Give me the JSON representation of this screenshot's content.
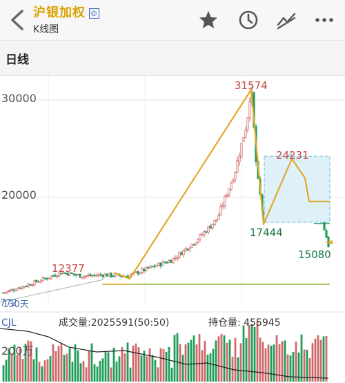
{
  "header": {
    "title": "沪银加权",
    "badge": "◎",
    "subtitle": "K线图",
    "icons": [
      "back-icon",
      "star-icon",
      "clock-icon",
      "trend-icon",
      "more-icon"
    ]
  },
  "tabs": {
    "active": "日线"
  },
  "price_chart": {
    "y_ticks": [
      "30000",
      "20000"
    ],
    "annotations": {
      "high": "31574",
      "secondary_high": "24231",
      "low_a": "17444",
      "low_b": "15080",
      "early_high": "12377"
    },
    "ma_label": "130天",
    "ma_label_b": "772"
  },
  "volume_chart": {
    "indicator": "CJL",
    "volume_text": "成交量:2025591(50:50)",
    "oi_text": "持仓量: 455945",
    "y_tick": "200万"
  },
  "colors": {
    "up": "#d06a6a",
    "down": "#1f9c5a",
    "wave": "#e0a92a",
    "box": "#7cc5e0",
    "support": "#8ab42a",
    "title": "#d9a300"
  },
  "chart_data": {
    "type": "candlestick",
    "y_range": [
      9500,
      32500
    ],
    "y_ticks": [
      20000,
      30000
    ],
    "swing_points": [
      {
        "label": "12377",
        "value": 12377
      },
      {
        "label": "31574",
        "value": 31574
      },
      {
        "label": "17444",
        "value": 17444
      },
      {
        "label": "24231",
        "value": 24231
      },
      {
        "label": "15080",
        "value": 15080
      }
    ],
    "support_level": 12000,
    "box_range": [
      17444,
      24231
    ],
    "volume_indicator": "CJL",
    "volume": "2025591(50:50)",
    "open_interest": "455945"
  }
}
